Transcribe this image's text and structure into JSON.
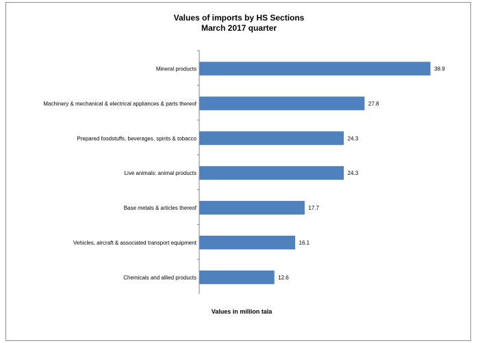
{
  "chart_data": {
    "type": "bar",
    "orientation": "horizontal",
    "title": "Values of imports by HS Sections",
    "subtitle": "March 2017 quarter",
    "xlabel": "Values in million tala",
    "ylabel": "",
    "categories": [
      "Mineral products",
      "Machinery & mechanical & electrical appliances & parts thereof",
      "Prepared foodstuffs, beverages, spirits & tobacco",
      "Live animals: animal products",
      "Base metals & articles thereof",
      "Vehicles, aircraft & associated transport equipment",
      "Chemicals and allied products"
    ],
    "values": [
      38.9,
      27.8,
      24.3,
      24.3,
      17.7,
      16.1,
      12.6
    ],
    "value_labels": [
      "38.9",
      "27.8",
      "24.3",
      "24.3",
      "17.7",
      "16.1",
      "12.6"
    ],
    "xlim": [
      0,
      45
    ],
    "grid": false,
    "legend": "none",
    "bar_color": "#4f81bd"
  }
}
